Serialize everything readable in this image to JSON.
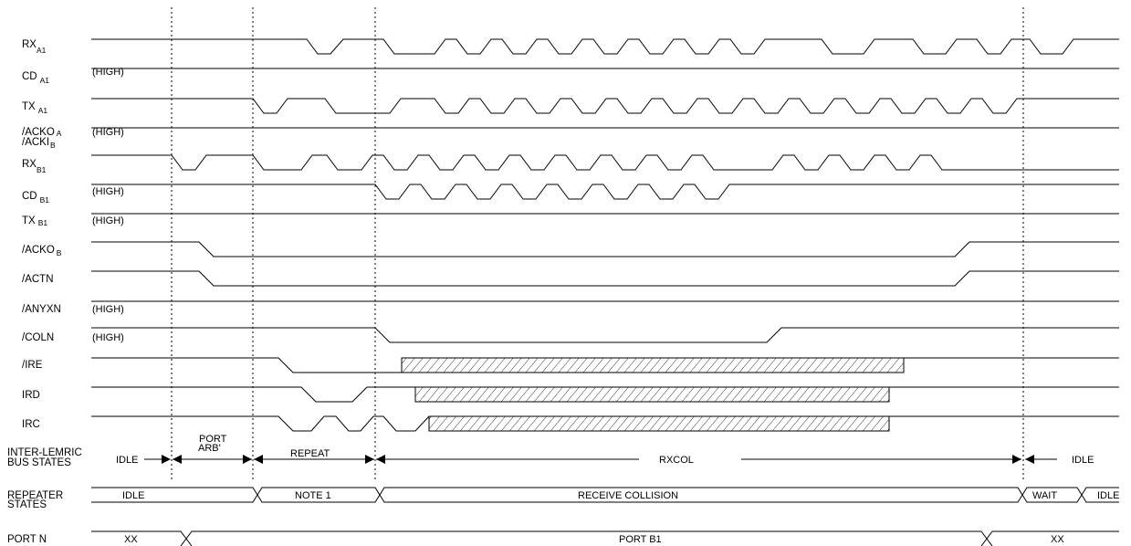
{
  "signals": [
    {
      "label": "RX",
      "sub": "A1"
    },
    {
      "label": "CD",
      "sub": "A1",
      "note": "(HIGH)"
    },
    {
      "label": "TX",
      "sub": "A1"
    },
    {
      "label": "/ACKO",
      "sub": "A",
      "label2": "/ACKI",
      "sub2": "B",
      "note": "(HIGH)"
    },
    {
      "label": "RX",
      "sub": "B1"
    },
    {
      "label": "CD",
      "sub": "B1",
      "note": "(HIGH)"
    },
    {
      "label": "TX",
      "sub": "B1",
      "note": "(HIGH)"
    },
    {
      "label": "/ACKO",
      "sub": "B"
    },
    {
      "label": "/ACTN"
    },
    {
      "label": "/ANYXN",
      "note": "(HIGH)"
    },
    {
      "label": "/COLN",
      "note": "(HIGH)"
    },
    {
      "label": "/IRE"
    },
    {
      "label": "IRD"
    },
    {
      "label": "IRC"
    }
  ],
  "bus_states": {
    "label_line1": "INTER-LEMRIC",
    "label_line2": "BUS STATES",
    "idle_left": "IDLE",
    "port_arb_line1": "PORT",
    "port_arb_line2": "ARB'",
    "repeat": "REPEAT",
    "rxcol": "RXCOL",
    "idle_right": "IDLE"
  },
  "repeater_states": {
    "label_line1": "REPEATER",
    "label_line2": "STATES",
    "values": [
      "IDLE",
      "NOTE 1",
      "RECEIVE COLLISION",
      "WAIT",
      "IDLE"
    ]
  },
  "port_n": {
    "label": "PORT N",
    "values": [
      "XX",
      "PORT B1",
      "XX"
    ]
  }
}
